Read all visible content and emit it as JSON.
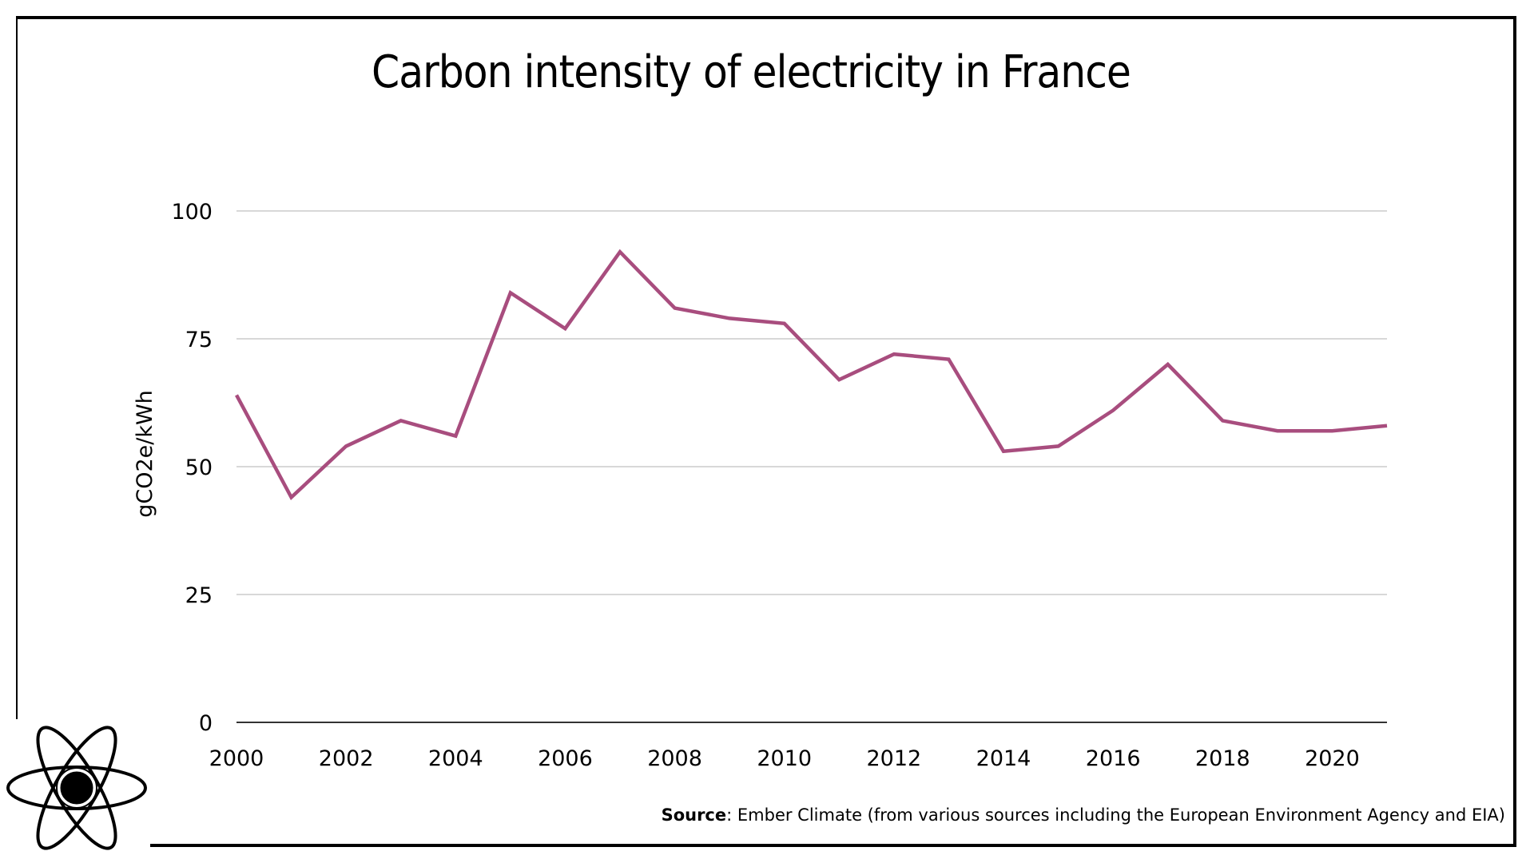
{
  "title": "Carbon intensity of electricity in France",
  "source": {
    "label": "Source",
    "text": ": Ember Climate (from various sources including the European Environment Agency and EIA)"
  },
  "logo_icon": "atom-icon",
  "colors": {
    "line": "#A84D7E",
    "grid": "#CCCCCC",
    "axis": "#333333",
    "frame": "#000000"
  },
  "chart_data": {
    "type": "line",
    "title": "Carbon intensity of electricity in France",
    "xlabel": "",
    "ylabel": "gCO2e/kWh",
    "xlim": [
      2000,
      2021
    ],
    "ylim": [
      0,
      100
    ],
    "x_ticks": [
      "2000",
      "2002",
      "2004",
      "2006",
      "2008",
      "2010",
      "2012",
      "2014",
      "2016",
      "2018",
      "2020"
    ],
    "y_ticks": [
      "0",
      "25",
      "50",
      "75",
      "100"
    ],
    "grid": true,
    "legend": "none",
    "series": [
      {
        "x": [
          2000,
          2001,
          2002,
          2003,
          2004,
          2005,
          2006,
          2007,
          2008,
          2009,
          2010,
          2011,
          2012,
          2013,
          2014,
          2015,
          2016,
          2017,
          2018,
          2019,
          2020,
          2021
        ],
        "values": [
          64,
          44,
          54,
          59,
          56,
          84,
          77,
          92,
          81,
          79,
          78,
          67,
          72,
          71,
          53,
          54,
          61,
          70,
          59,
          57,
          57,
          58
        ]
      }
    ]
  }
}
